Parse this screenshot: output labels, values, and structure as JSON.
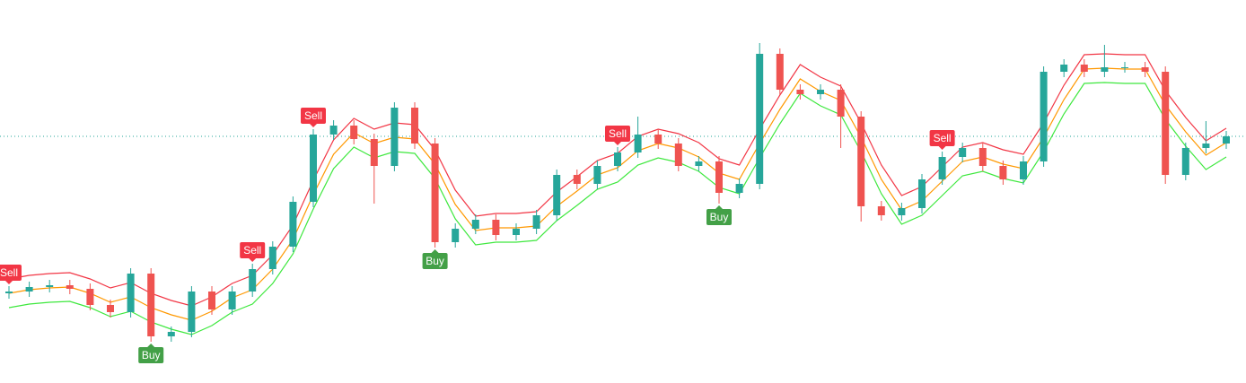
{
  "chart_data": {
    "type": "candlestick",
    "ylim": [
      0,
      427
    ],
    "up_color": "#26a69a",
    "down_color": "#ef5350",
    "price_line": 275,
    "price_line_color": "#26a69a",
    "ohlc": [
      [
        100,
        108,
        94,
        102
      ],
      [
        102,
        113,
        96,
        107
      ],
      [
        107,
        115,
        101,
        109
      ],
      [
        109,
        115,
        99,
        105
      ],
      [
        105,
        111,
        81,
        87
      ],
      [
        87,
        93,
        73,
        79
      ],
      [
        79,
        128,
        73,
        122
      ],
      [
        122,
        128,
        46,
        52
      ],
      [
        52,
        63,
        46,
        57
      ],
      [
        57,
        108,
        51,
        102
      ],
      [
        102,
        108,
        76,
        82
      ],
      [
        82,
        108,
        76,
        102
      ],
      [
        102,
        133,
        96,
        127
      ],
      [
        127,
        158,
        121,
        152
      ],
      [
        152,
        208,
        146,
        202
      ],
      [
        202,
        283,
        196,
        277
      ],
      [
        277,
        293,
        271,
        287
      ],
      [
        287,
        293,
        266,
        272
      ],
      [
        272,
        278,
        200,
        242
      ],
      [
        242,
        313,
        236,
        307
      ],
      [
        307,
        313,
        261,
        267
      ],
      [
        267,
        273,
        151,
        157
      ],
      [
        157,
        178,
        151,
        172
      ],
      [
        172,
        188,
        166,
        182
      ],
      [
        182,
        188,
        159,
        165
      ],
      [
        165,
        178,
        159,
        172
      ],
      [
        172,
        193,
        166,
        187
      ],
      [
        187,
        238,
        181,
        232
      ],
      [
        232,
        238,
        216,
        222
      ],
      [
        222,
        248,
        216,
        242
      ],
      [
        242,
        263,
        236,
        257
      ],
      [
        257,
        297,
        251,
        277
      ],
      [
        277,
        283,
        261,
        267
      ],
      [
        267,
        273,
        236,
        242
      ],
      [
        242,
        253,
        236,
        247
      ],
      [
        247,
        253,
        200,
        212
      ],
      [
        212,
        228,
        206,
        222
      ],
      [
        222,
        379,
        216,
        367
      ],
      [
        367,
        373,
        321,
        327
      ],
      [
        327,
        333,
        316,
        322
      ],
      [
        322,
        333,
        316,
        327
      ],
      [
        327,
        333,
        262,
        297
      ],
      [
        297,
        303,
        180,
        197
      ],
      [
        197,
        203,
        181,
        187
      ],
      [
        187,
        201,
        181,
        195
      ],
      [
        195,
        233,
        189,
        227
      ],
      [
        227,
        258,
        221,
        252
      ],
      [
        252,
        268,
        246,
        262
      ],
      [
        262,
        268,
        236,
        242
      ],
      [
        242,
        248,
        221,
        227
      ],
      [
        227,
        253,
        221,
        247
      ],
      [
        247,
        353,
        241,
        347
      ],
      [
        347,
        361,
        341,
        355
      ],
      [
        355,
        361,
        341,
        347
      ],
      [
        347,
        377,
        341,
        352
      ],
      [
        352,
        358,
        346,
        352
      ],
      [
        352,
        358,
        341,
        347
      ],
      [
        347,
        353,
        222,
        232
      ],
      [
        232,
        268,
        226,
        262
      ],
      [
        262,
        292,
        256,
        267
      ],
      [
        267,
        281,
        261,
        275
      ]
    ],
    "bands": [
      {
        "color": "#f23645",
        "values": [
          116,
          120,
          122,
          123,
          116,
          106,
          112,
          100,
          92,
          86,
          96,
          111,
          120,
          143,
          176,
          226,
          271,
          295,
          283,
          290,
          288,
          260,
          215,
          186,
          189,
          189,
          191,
          213,
          230,
          248,
          256,
          275,
          283,
          278,
          268,
          250,
          243,
          283,
          321,
          355,
          341,
          331,
          290,
          243,
          209,
          219,
          241,
          263,
          268,
          260,
          255,
          290,
          332,
          366,
          367,
          366,
          366,
          326,
          296,
          270,
          284
        ]
      },
      {
        "color": "#ff9800",
        "values": [
          100,
          104,
          106,
          107,
          100,
          90,
          96,
          84,
          76,
          70,
          80,
          95,
          104,
          127,
          160,
          210,
          255,
          279,
          267,
          274,
          272,
          244,
          199,
          170,
          173,
          173,
          175,
          197,
          214,
          232,
          240,
          259,
          267,
          262,
          252,
          234,
          227,
          267,
          305,
          339,
          325,
          315,
          274,
          227,
          193,
          203,
          225,
          247,
          252,
          244,
          239,
          274,
          316,
          350,
          351,
          350,
          350,
          310,
          280,
          254,
          268
        ]
      },
      {
        "color": "#3ee83e",
        "values": [
          84,
          88,
          90,
          91,
          84,
          74,
          80,
          68,
          60,
          54,
          64,
          79,
          88,
          111,
          144,
          194,
          239,
          263,
          251,
          258,
          256,
          228,
          183,
          154,
          157,
          157,
          159,
          181,
          198,
          216,
          224,
          243,
          251,
          246,
          236,
          218,
          211,
          251,
          289,
          323,
          309,
          299,
          258,
          211,
          177,
          187,
          209,
          231,
          236,
          228,
          223,
          258,
          300,
          334,
          335,
          334,
          334,
          294,
          264,
          238,
          252
        ]
      }
    ],
    "signals": [
      {
        "label": "Sell",
        "index": 0,
        "color": "#f23645"
      },
      {
        "label": "Buy",
        "index": 7,
        "color": "#43a047"
      },
      {
        "label": "Sell",
        "index": 12,
        "color": "#f23645"
      },
      {
        "label": "Sell",
        "index": 15,
        "color": "#f23645"
      },
      {
        "label": "Buy",
        "index": 21,
        "color": "#43a047"
      },
      {
        "label": "Sell",
        "index": 30,
        "color": "#f23645"
      },
      {
        "label": "Buy",
        "index": 35,
        "color": "#43a047"
      },
      {
        "label": "Sell",
        "index": 46,
        "color": "#f23645"
      }
    ]
  }
}
